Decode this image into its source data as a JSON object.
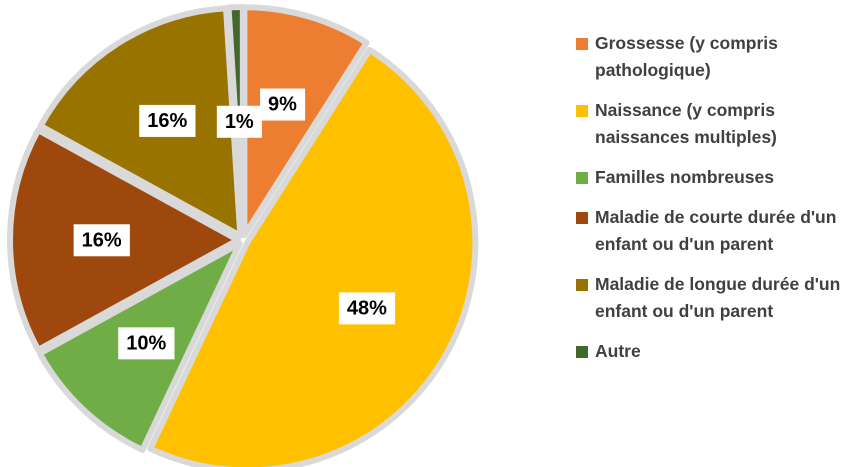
{
  "chart_data": {
    "type": "pie",
    "categories": [
      "Grossesse (y compris pathologique)",
      "Naissance (y compris naissances multiples)",
      "Familles nombreuses",
      "Maladie de courte durée d'un enfant ou d'un parent",
      "Maladie de longue durée d'un enfant ou d'un parent",
      "Autre"
    ],
    "values": [
      9,
      48,
      10,
      16,
      16,
      1
    ],
    "value_labels": [
      "9%",
      "48%",
      "10%",
      "16%",
      "16%",
      "1%"
    ],
    "colors": [
      "#ED7D31",
      "#FFC000",
      "#70AD47",
      "#9E480E",
      "#997300",
      "#43682B"
    ]
  }
}
